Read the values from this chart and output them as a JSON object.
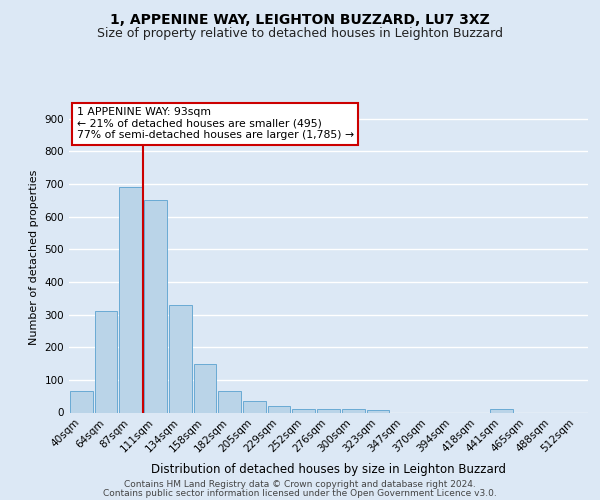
{
  "title1": "1, APPENINE WAY, LEIGHTON BUZZARD, LU7 3XZ",
  "title2": "Size of property relative to detached houses in Leighton Buzzard",
  "xlabel": "Distribution of detached houses by size in Leighton Buzzard",
  "ylabel": "Number of detached properties",
  "bar_labels": [
    "40sqm",
    "64sqm",
    "87sqm",
    "111sqm",
    "134sqm",
    "158sqm",
    "182sqm",
    "205sqm",
    "229sqm",
    "252sqm",
    "276sqm",
    "300sqm",
    "323sqm",
    "347sqm",
    "370sqm",
    "394sqm",
    "418sqm",
    "441sqm",
    "465sqm",
    "488sqm",
    "512sqm"
  ],
  "bar_values": [
    65,
    310,
    690,
    650,
    330,
    150,
    65,
    35,
    20,
    12,
    12,
    10,
    8,
    0,
    0,
    0,
    0,
    10,
    0,
    0,
    0
  ],
  "bar_color": "#bad4e8",
  "bar_edge_color": "#6aaad4",
  "bg_color": "#dce8f5",
  "grid_color": "#ffffff",
  "vline_color": "#cc0000",
  "vline_index": 2.5,
  "annotation_text": "1 APPENINE WAY: 93sqm\n← 21% of detached houses are smaller (495)\n77% of semi-detached houses are larger (1,785) →",
  "annotation_box_facecolor": "#ffffff",
  "annotation_box_edgecolor": "#cc0000",
  "footer1": "Contains HM Land Registry data © Crown copyright and database right 2024.",
  "footer2": "Contains public sector information licensed under the Open Government Licence v3.0.",
  "ylim": [
    0,
    950
  ],
  "yticks": [
    0,
    100,
    200,
    300,
    400,
    500,
    600,
    700,
    800,
    900
  ],
  "title1_fontsize": 10,
  "title2_fontsize": 9,
  "ylabel_fontsize": 8,
  "xlabel_fontsize": 8.5,
  "tick_fontsize": 7.5,
  "footer_fontsize": 6.5
}
